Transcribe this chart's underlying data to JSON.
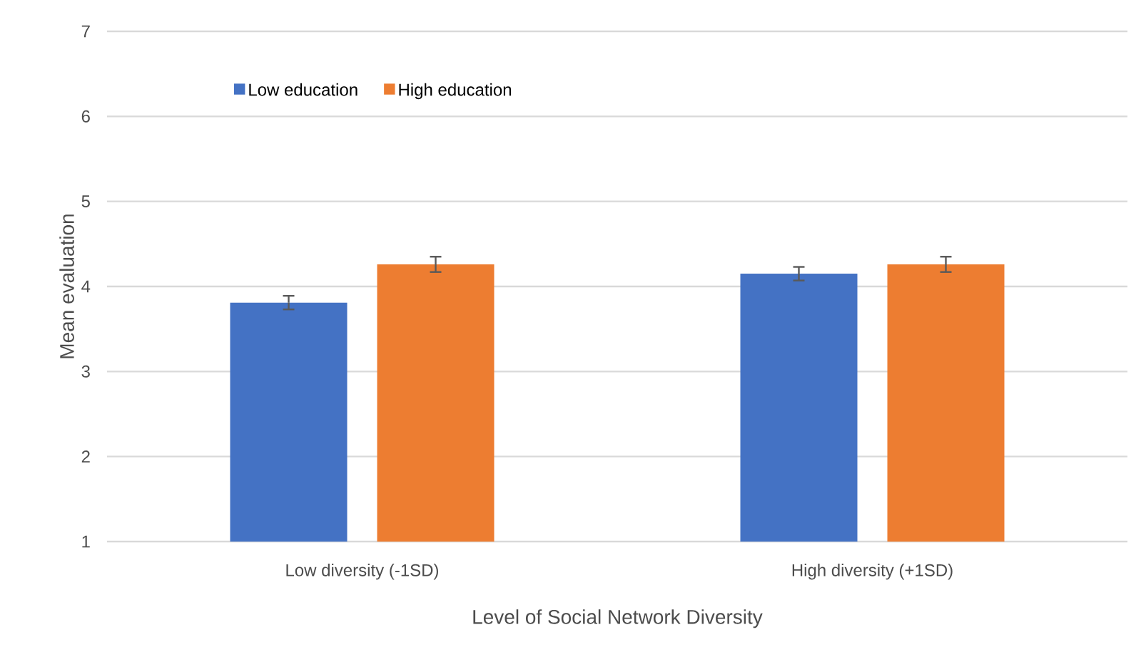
{
  "chart_data": {
    "type": "bar",
    "xlabel": "Level of Social Network Diversity",
    "ylabel": "Mean evaluation",
    "categories": [
      "Low diversity (-1SD)",
      "High diversity (+1SD)"
    ],
    "series": [
      {
        "name": "Low education",
        "color": "#4472c4",
        "values": [
          3.81,
          4.15
        ],
        "errors": [
          0.08,
          0.08
        ]
      },
      {
        "name": "High education",
        "color": "#ed7d31",
        "values": [
          4.26,
          4.26
        ],
        "errors": [
          0.09,
          0.09
        ]
      }
    ],
    "ylim": [
      1,
      7
    ],
    "yticks": [
      1,
      2,
      3,
      4,
      5,
      6,
      7
    ],
    "grid": "y",
    "legend": "top left"
  }
}
